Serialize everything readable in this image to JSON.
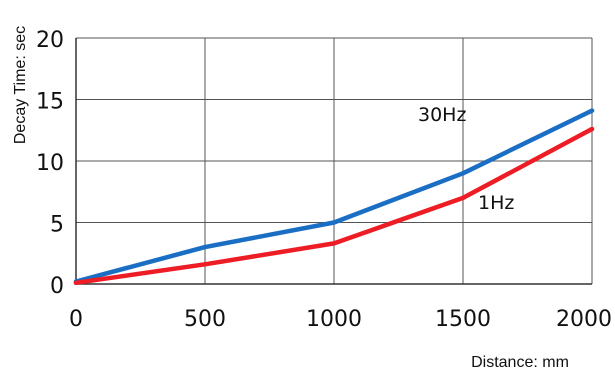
{
  "chart_data": {
    "type": "line",
    "xlabel": "Distance: mm",
    "ylabel": "Decay Time: sec",
    "xlim": [
      0,
      2000
    ],
    "ylim": [
      0,
      20
    ],
    "x_ticks": [
      0,
      500,
      1000,
      1500,
      2000
    ],
    "y_ticks": [
      0,
      5,
      10,
      15,
      20
    ],
    "grid": true,
    "series": [
      {
        "name": "30Hz",
        "color": "#1a6fc4",
        "x": [
          0,
          500,
          1000,
          1500,
          2000
        ],
        "y": [
          0.2,
          3,
          5,
          9,
          14.1
        ]
      },
      {
        "name": "1Hz",
        "color": "#ee1c25",
        "x": [
          0,
          500,
          1000,
          1500,
          2000
        ],
        "y": [
          0.1,
          1.6,
          3.3,
          7,
          12.6
        ]
      }
    ]
  }
}
